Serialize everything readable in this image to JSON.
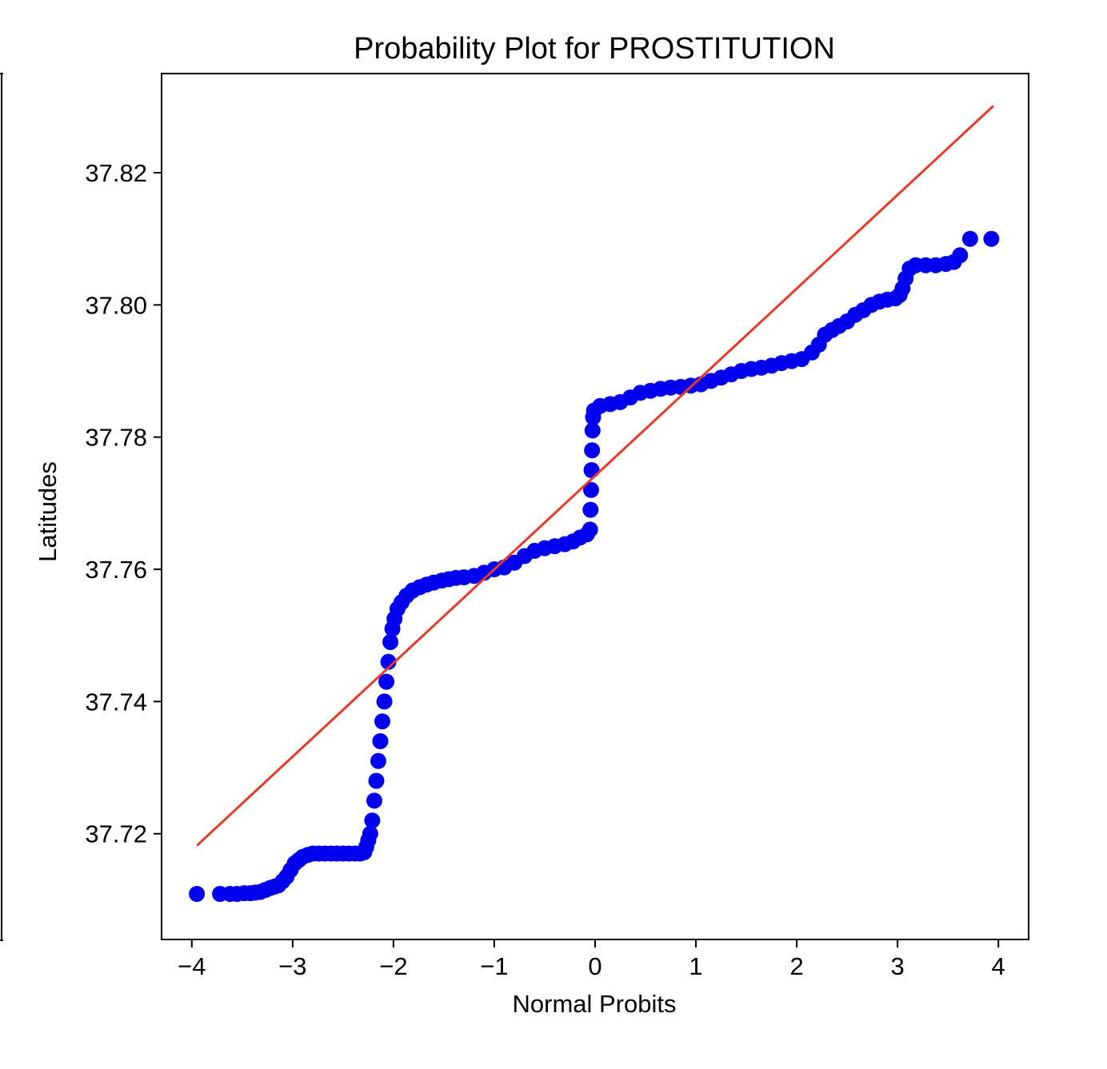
{
  "chart_data": {
    "type": "scatter",
    "title": "Probability Plot for PROSTITUTION",
    "xlabel": "Normal Probits",
    "ylabel": "Latitudes",
    "xlim": [
      -4.3,
      4.3
    ],
    "ylim": [
      37.704,
      37.835
    ],
    "xticks": [
      -4,
      -3,
      -2,
      -1,
      0,
      1,
      2,
      3,
      4
    ],
    "xtick_labels": [
      "−4",
      "−3",
      "−2",
      "−1",
      "0",
      "1",
      "2",
      "3",
      "4"
    ],
    "yticks": [
      37.72,
      37.74,
      37.76,
      37.78,
      37.8,
      37.82
    ],
    "ytick_labels": [
      "37.72",
      "37.74",
      "37.76",
      "37.78",
      "37.80",
      "37.82"
    ],
    "grid": false,
    "series": [
      {
        "kind": "scatter",
        "color": "#0000ee",
        "points": [
          [
            -3.95,
            37.7109
          ],
          [
            -3.72,
            37.7109
          ],
          [
            -3.62,
            37.7109
          ],
          [
            -3.55,
            37.7109
          ],
          [
            -3.48,
            37.711
          ],
          [
            -3.42,
            37.711
          ],
          [
            -3.37,
            37.7111
          ],
          [
            -3.32,
            37.7112
          ],
          [
            -3.27,
            37.7115
          ],
          [
            -3.22,
            37.7118
          ],
          [
            -3.18,
            37.712
          ],
          [
            -3.14,
            37.7122
          ],
          [
            -3.1,
            37.7128
          ],
          [
            -3.06,
            37.7135
          ],
          [
            -3.02,
            37.7145
          ],
          [
            -2.98,
            37.7155
          ],
          [
            -2.94,
            37.716
          ],
          [
            -2.9,
            37.7165
          ],
          [
            -2.85,
            37.7168
          ],
          [
            -2.8,
            37.717
          ],
          [
            -2.74,
            37.717
          ],
          [
            -2.68,
            37.717
          ],
          [
            -2.62,
            37.717
          ],
          [
            -2.56,
            37.717
          ],
          [
            -2.5,
            37.717
          ],
          [
            -2.44,
            37.717
          ],
          [
            -2.38,
            37.717
          ],
          [
            -2.33,
            37.717
          ],
          [
            -2.29,
            37.7172
          ],
          [
            -2.27,
            37.718
          ],
          [
            -2.25,
            37.719
          ],
          [
            -2.23,
            37.72
          ],
          [
            -2.21,
            37.722
          ],
          [
            -2.19,
            37.725
          ],
          [
            -2.17,
            37.728
          ],
          [
            -2.15,
            37.731
          ],
          [
            -2.13,
            37.734
          ],
          [
            -2.11,
            37.737
          ],
          [
            -2.09,
            37.74
          ],
          [
            -2.07,
            37.743
          ],
          [
            -2.05,
            37.746
          ],
          [
            -2.03,
            37.749
          ],
          [
            -2.01,
            37.751
          ],
          [
            -1.99,
            37.7525
          ],
          [
            -1.96,
            37.754
          ],
          [
            -1.92,
            37.755
          ],
          [
            -1.87,
            37.756
          ],
          [
            -1.81,
            37.7568
          ],
          [
            -1.74,
            37.7573
          ],
          [
            -1.67,
            37.7577
          ],
          [
            -1.6,
            37.758
          ],
          [
            -1.52,
            37.7583
          ],
          [
            -1.45,
            37.7585
          ],
          [
            -1.38,
            37.7587
          ],
          [
            -1.3,
            37.7588
          ],
          [
            -1.2,
            37.759
          ],
          [
            -1.1,
            37.7595
          ],
          [
            -1.0,
            37.76
          ],
          [
            -0.9,
            37.7603
          ],
          [
            -0.8,
            37.761
          ],
          [
            -0.7,
            37.762
          ],
          [
            -0.6,
            37.7628
          ],
          [
            -0.5,
            37.7632
          ],
          [
            -0.4,
            37.7635
          ],
          [
            -0.3,
            37.7638
          ],
          [
            -0.22,
            37.7642
          ],
          [
            -0.15,
            37.7648
          ],
          [
            -0.08,
            37.7653
          ],
          [
            -0.05,
            37.766
          ],
          [
            -0.045,
            37.769
          ],
          [
            -0.04,
            37.772
          ],
          [
            -0.035,
            37.775
          ],
          [
            -0.03,
            37.778
          ],
          [
            -0.025,
            37.781
          ],
          [
            -0.02,
            37.783
          ],
          [
            -0.01,
            37.784
          ],
          [
            0.05,
            37.7847
          ],
          [
            0.15,
            37.785
          ],
          [
            0.25,
            37.7853
          ],
          [
            0.35,
            37.786
          ],
          [
            0.45,
            37.7867
          ],
          [
            0.55,
            37.787
          ],
          [
            0.65,
            37.7873
          ],
          [
            0.75,
            37.7875
          ],
          [
            0.85,
            37.7876
          ],
          [
            0.95,
            37.7878
          ],
          [
            1.05,
            37.788
          ],
          [
            1.15,
            37.7885
          ],
          [
            1.25,
            37.789
          ],
          [
            1.35,
            37.7895
          ],
          [
            1.45,
            37.79
          ],
          [
            1.55,
            37.7903
          ],
          [
            1.65,
            37.7905
          ],
          [
            1.75,
            37.7908
          ],
          [
            1.85,
            37.7912
          ],
          [
            1.95,
            37.7915
          ],
          [
            2.05,
            37.7918
          ],
          [
            2.15,
            37.7928
          ],
          [
            2.22,
            37.794
          ],
          [
            2.28,
            37.7955
          ],
          [
            2.35,
            37.7962
          ],
          [
            2.42,
            37.7968
          ],
          [
            2.5,
            37.7975
          ],
          [
            2.58,
            37.7985
          ],
          [
            2.66,
            37.7992
          ],
          [
            2.74,
            37.8
          ],
          [
            2.82,
            37.8005
          ],
          [
            2.9,
            37.8008
          ],
          [
            2.98,
            37.801
          ],
          [
            3.02,
            37.8015
          ],
          [
            3.05,
            37.8025
          ],
          [
            3.08,
            37.804
          ],
          [
            3.12,
            37.8055
          ],
          [
            3.18,
            37.806
          ],
          [
            3.28,
            37.806
          ],
          [
            3.38,
            37.806
          ],
          [
            3.48,
            37.8062
          ],
          [
            3.56,
            37.8065
          ],
          [
            3.62,
            37.8075
          ],
          [
            3.72,
            37.81
          ],
          [
            3.93,
            37.81
          ]
        ]
      },
      {
        "kind": "line",
        "color": "#e8392a",
        "points": [
          [
            -3.95,
            37.7182
          ],
          [
            3.95,
            37.8301
          ]
        ]
      }
    ]
  }
}
